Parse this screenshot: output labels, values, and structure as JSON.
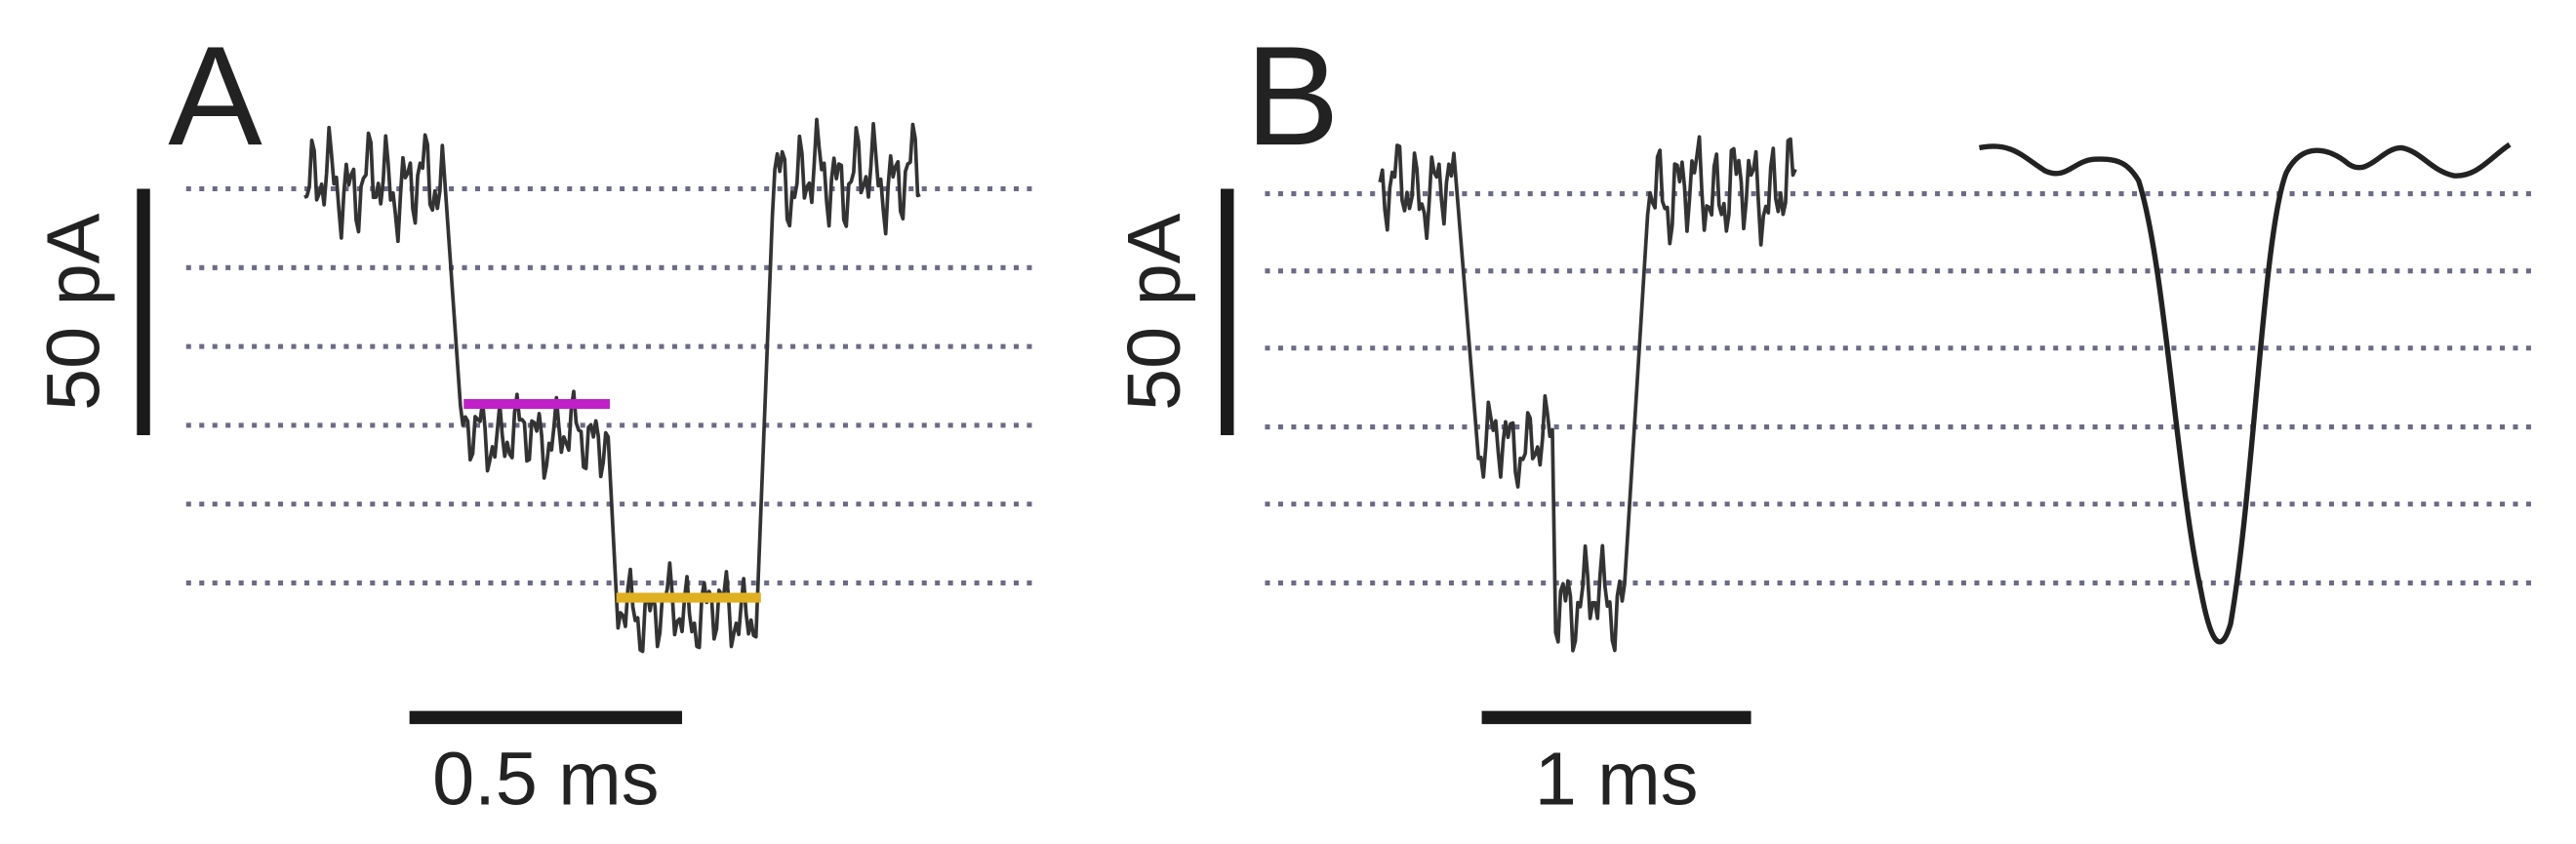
{
  "panels": [
    {
      "label": "A",
      "y_scale": "50 pA",
      "x_scale": "0.5 ms"
    },
    {
      "label": "B",
      "y_scale": "50 pA",
      "x_scale": "1 ms"
    }
  ]
}
